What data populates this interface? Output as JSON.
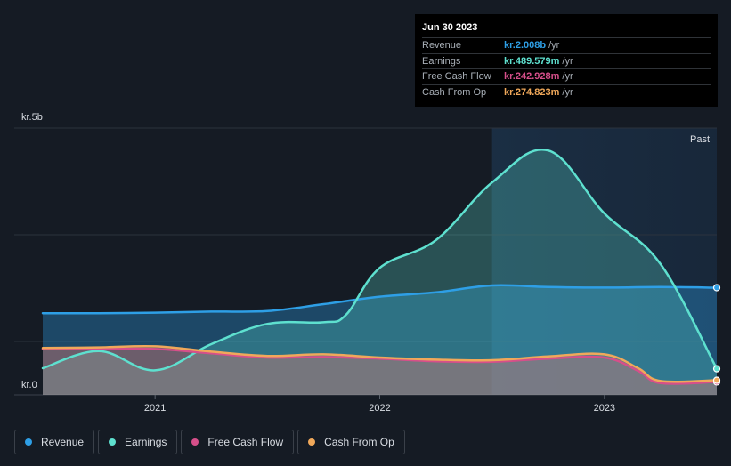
{
  "tooltip": {
    "date": "Jun 30 2023",
    "rows": [
      {
        "label": "Revenue",
        "value": "kr.2.008b",
        "unit": "/yr",
        "color": "#2e9fe6"
      },
      {
        "label": "Earnings",
        "value": "kr.489.579m",
        "unit": "/yr",
        "color": "#5ee0cf"
      },
      {
        "label": "Free Cash Flow",
        "value": "kr.242.928m",
        "unit": "/yr",
        "color": "#d64f8a"
      },
      {
        "label": "Cash From Op",
        "value": "kr.274.823m",
        "unit": "/yr",
        "color": "#f0a85a"
      }
    ]
  },
  "region_label": "Past",
  "legend": [
    {
      "label": "Revenue",
      "color": "#2e9fe6"
    },
    {
      "label": "Earnings",
      "color": "#5ee0cf"
    },
    {
      "label": "Free Cash Flow",
      "color": "#d64f8a"
    },
    {
      "label": "Cash From Op",
      "color": "#f0a85a"
    }
  ],
  "chart_data": {
    "type": "area",
    "y_unit_labels": [
      "kr.5b",
      "kr.0"
    ],
    "ylim": [
      0,
      5.0
    ],
    "y_unit": "kr. billions",
    "x_tick_labels": [
      "2021",
      "2022",
      "2023"
    ],
    "x_ticks": [
      2021.0,
      2022.0,
      2023.0
    ],
    "xlim": [
      2020.5,
      2023.5
    ],
    "highlight_from": 2022.5,
    "grid": true,
    "series": [
      {
        "name": "Revenue",
        "color": "#2e9fe6",
        "x": [
          2020.5,
          2020.75,
          2021.0,
          2021.25,
          2021.5,
          2021.75,
          2022.0,
          2022.25,
          2022.5,
          2022.75,
          2023.0,
          2023.25,
          2023.5
        ],
        "y": [
          1.53,
          1.53,
          1.54,
          1.56,
          1.57,
          1.7,
          1.84,
          1.92,
          2.05,
          2.02,
          2.01,
          2.02,
          2.008
        ]
      },
      {
        "name": "Earnings",
        "color": "#5ee0cf",
        "x": [
          2020.5,
          2020.75,
          2021.0,
          2021.25,
          2021.5,
          2021.75,
          2021.85,
          2022.0,
          2022.25,
          2022.5,
          2022.75,
          2023.0,
          2023.25,
          2023.5
        ],
        "y": [
          0.5,
          0.82,
          0.46,
          0.95,
          1.33,
          1.36,
          1.5,
          2.38,
          2.9,
          3.98,
          4.58,
          3.4,
          2.45,
          0.4896
        ]
      },
      {
        "name": "Free Cash Flow",
        "color": "#d64f8a",
        "x": [
          2020.5,
          2020.75,
          2021.0,
          2021.25,
          2021.5,
          2021.75,
          2022.0,
          2022.25,
          2022.5,
          2022.75,
          2023.0,
          2023.15,
          2023.25,
          2023.5
        ],
        "y": [
          0.86,
          0.86,
          0.86,
          0.78,
          0.7,
          0.71,
          0.68,
          0.63,
          0.62,
          0.68,
          0.7,
          0.45,
          0.22,
          0.2429
        ]
      },
      {
        "name": "Cash From Op",
        "color": "#f0a85a",
        "x": [
          2020.5,
          2020.75,
          2021.0,
          2021.25,
          2021.5,
          2021.75,
          2022.0,
          2022.25,
          2022.5,
          2022.75,
          2023.0,
          2023.15,
          2023.25,
          2023.5
        ],
        "y": [
          0.88,
          0.89,
          0.91,
          0.81,
          0.73,
          0.76,
          0.7,
          0.66,
          0.65,
          0.72,
          0.76,
          0.5,
          0.26,
          0.2748
        ]
      }
    ]
  }
}
